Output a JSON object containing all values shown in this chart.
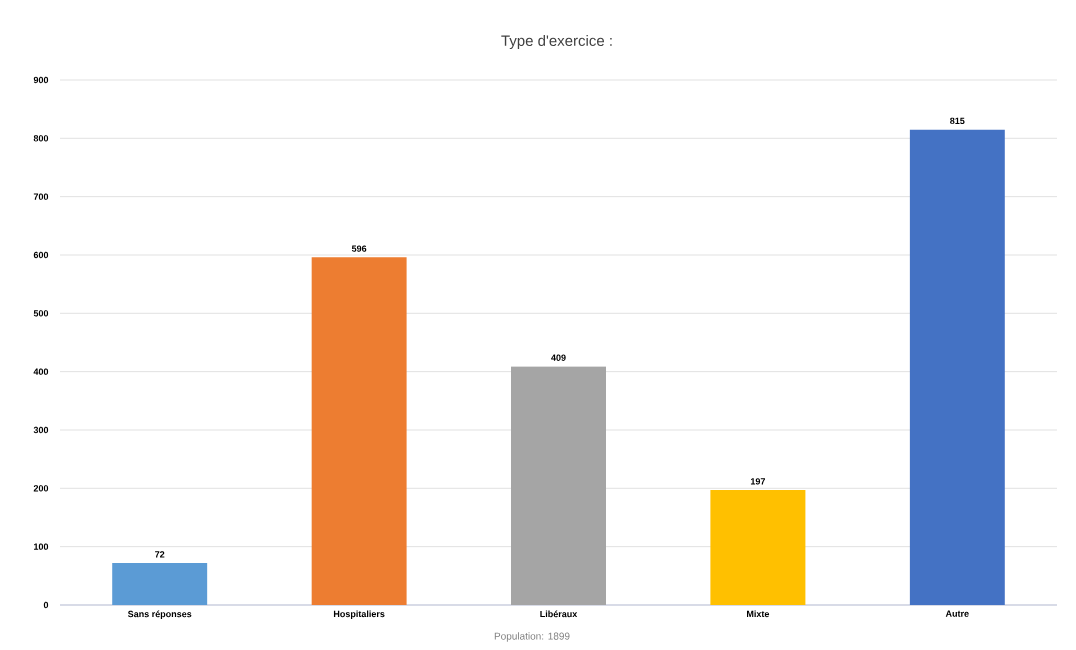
{
  "chart_data": {
    "type": "bar",
    "title": "Type d'exercice :",
    "categories": [
      "Sans réponses",
      "Hospitaliers",
      "Libéraux",
      "Mixte",
      "Autre"
    ],
    "values": [
      72,
      596,
      409,
      197,
      815
    ],
    "colors": [
      "#5b9bd5",
      "#ed7d31",
      "#a5a5a5",
      "#ffc000",
      "#4472c4"
    ],
    "ylim": [
      0,
      900
    ],
    "yticks": [
      0,
      100,
      200,
      300,
      400,
      500,
      600,
      700,
      800,
      900
    ],
    "grid": "y",
    "data_labels": true,
    "annotations": [
      "Population: 1899"
    ]
  }
}
